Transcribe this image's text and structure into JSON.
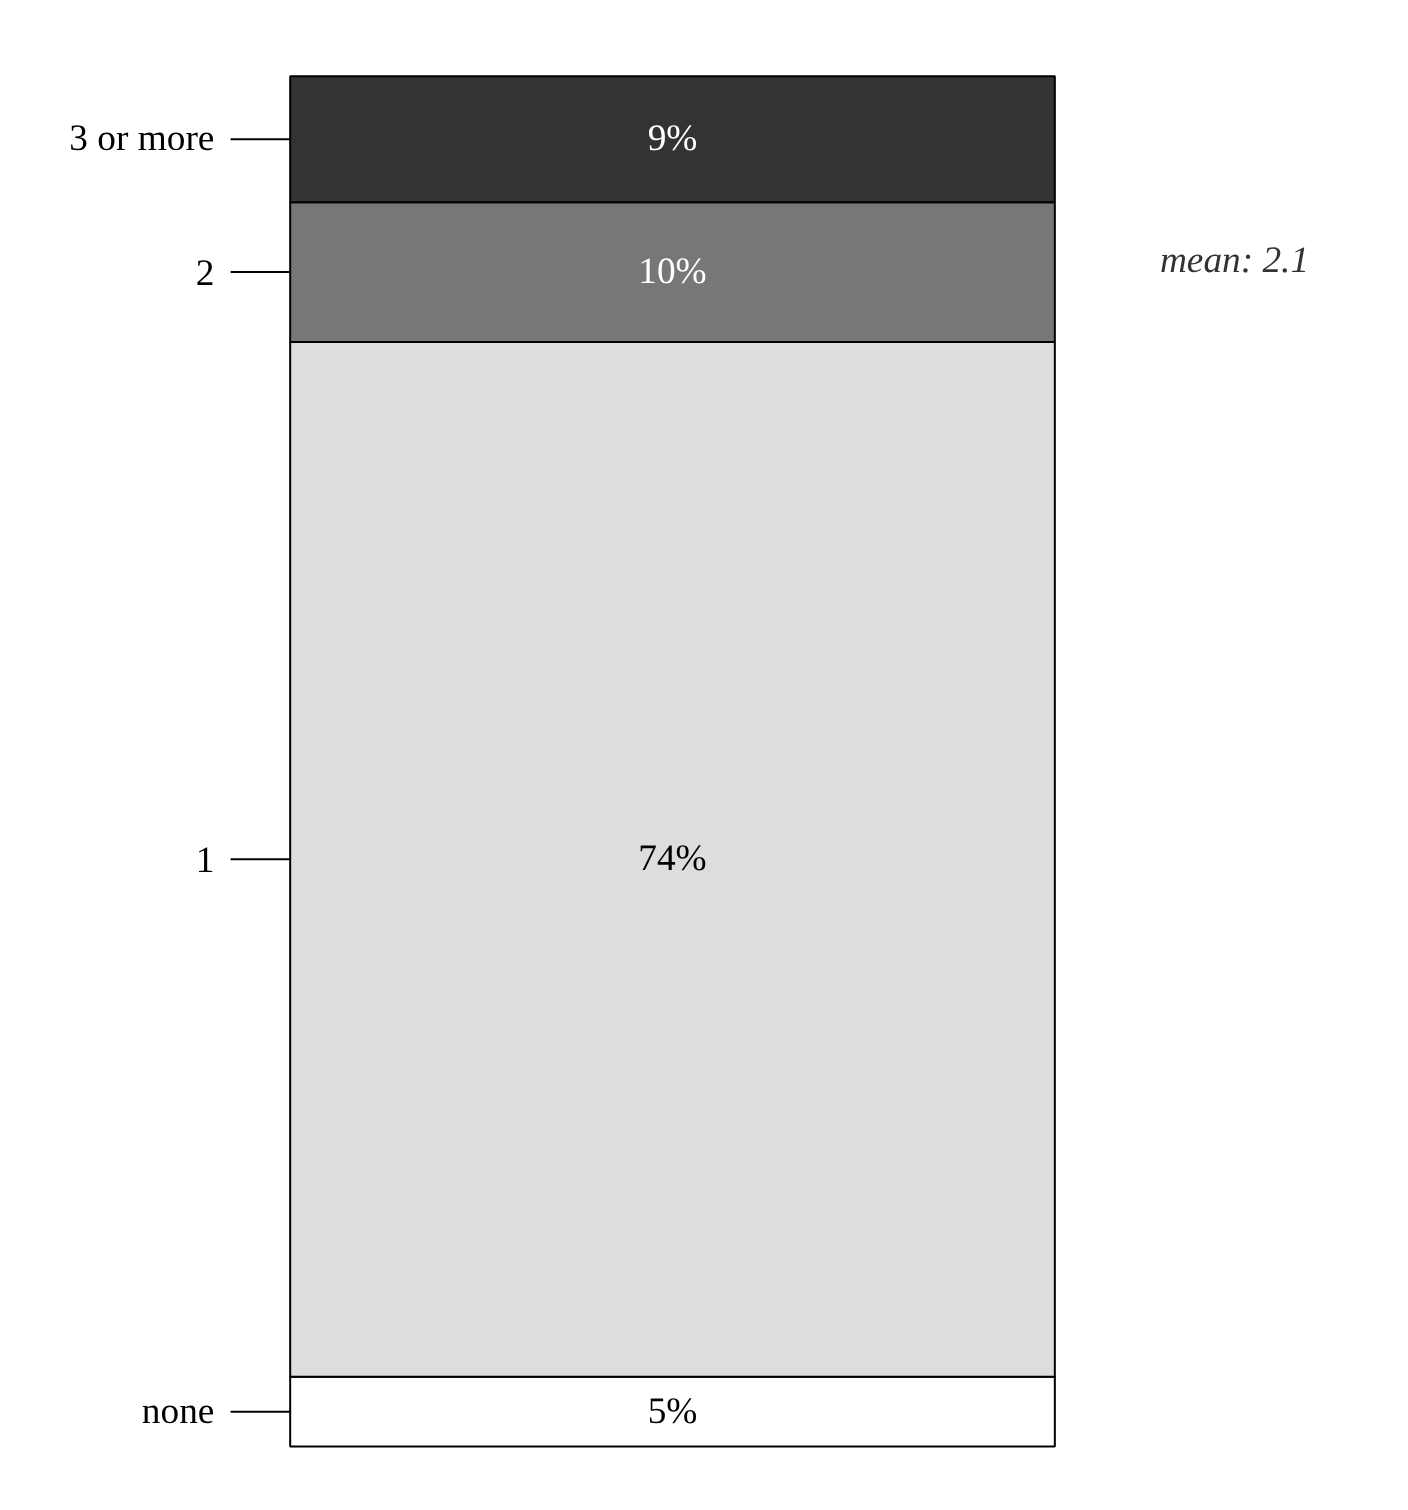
{
  "chart_data": {
    "type": "bar",
    "stacked": true,
    "categories": [
      null
    ],
    "legend": "left",
    "tick_labels": false,
    "series": [
      {
        "name": "none",
        "color": "#ffffff",
        "values": [
          5
        ],
        "value_labels": [
          "5%"
        ]
      },
      {
        "name": "1",
        "color": "#dddddd",
        "values": [
          74
        ],
        "value_labels": [
          "74%"
        ]
      },
      {
        "name": "2",
        "color": "#777777",
        "values": [
          10
        ],
        "value_labels": [
          "10%"
        ]
      },
      {
        "name": "3 or more",
        "color": "#333333",
        "values": [
          9
        ],
        "value_labels": [
          "9%"
        ]
      }
    ],
    "annotations": [
      "mean:  2.1"
    ]
  }
}
